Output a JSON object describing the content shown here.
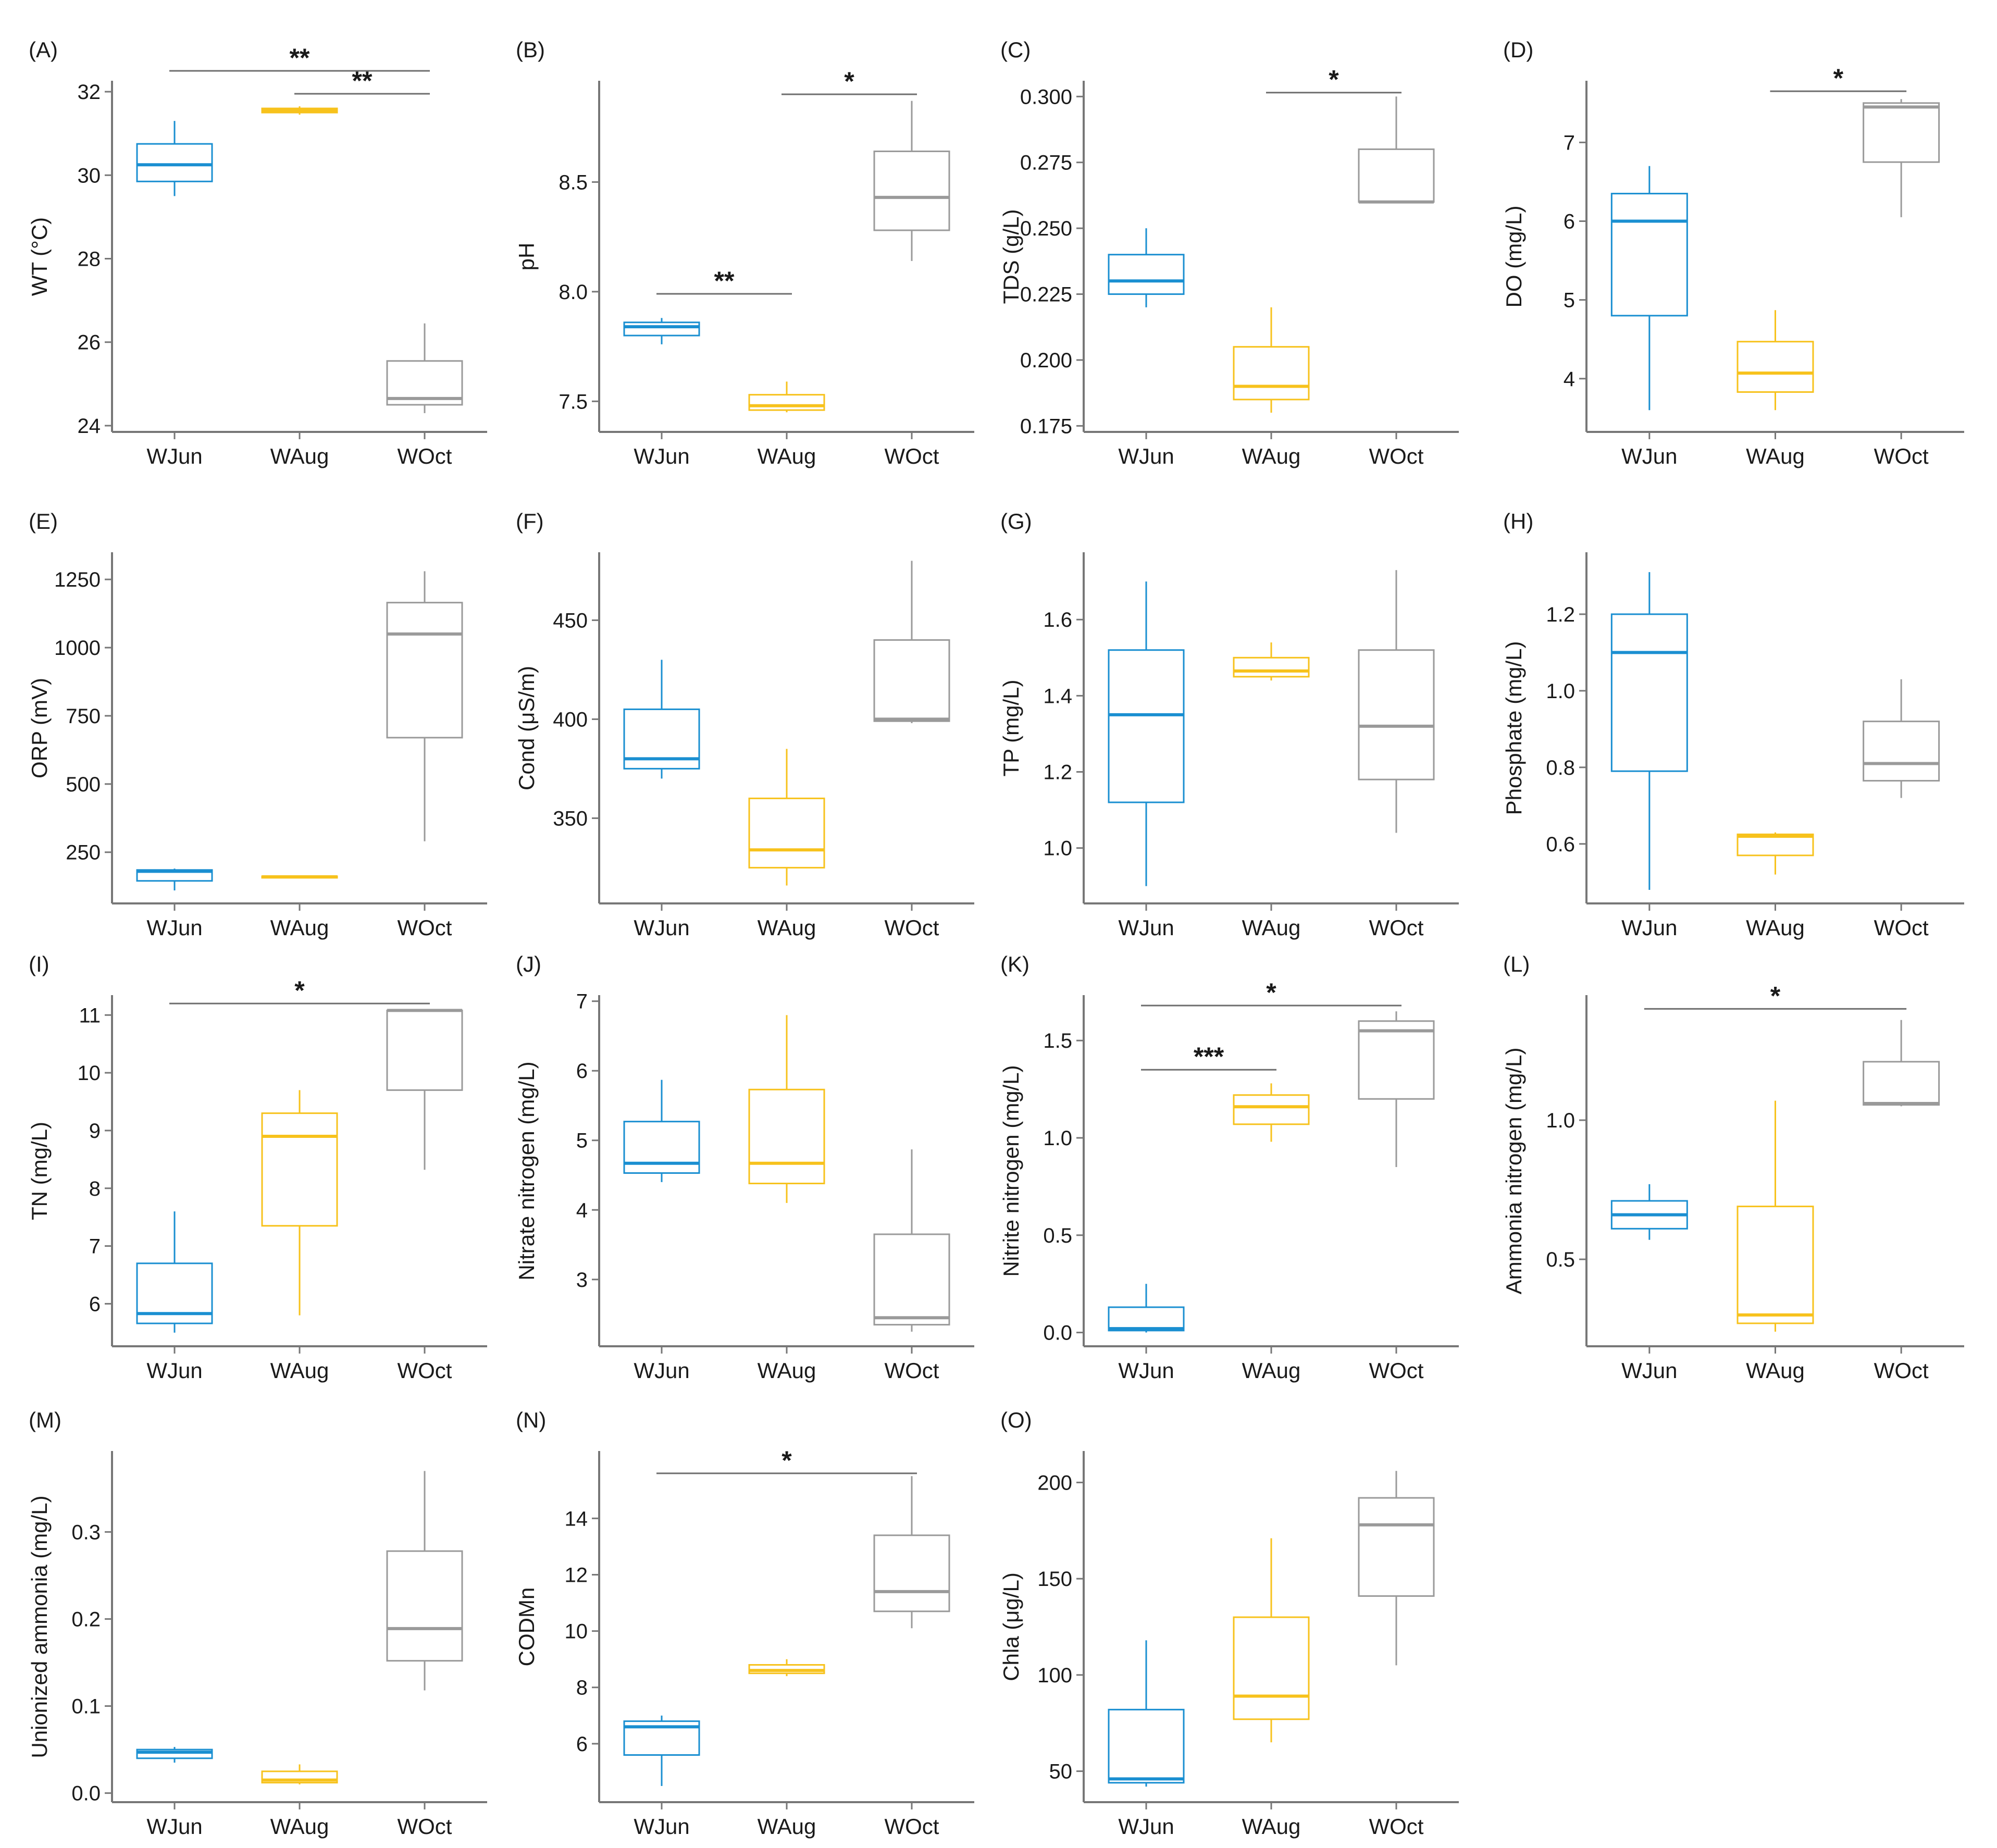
{
  "figure": {
    "groups": [
      "WJun",
      "WAug",
      "WOct"
    ],
    "group_colors": [
      "#1a8fd1",
      "#f7c21c",
      "#9a9a9a"
    ],
    "axis_color": "#777777",
    "bracket_color": "#6e6e6e"
  },
  "chart_data": [
    {
      "type": "box",
      "label": "(A)",
      "ylabel": "WT (°C)",
      "ylim": [
        23.9,
        32.2
      ],
      "ticks": [
        24,
        26,
        28,
        30,
        32
      ],
      "tick_labels": [
        "24",
        "26",
        "28",
        "30",
        "32"
      ],
      "boxes": [
        {
          "group": "WJun",
          "min": 29.5,
          "q1": 29.85,
          "median": 30.25,
          "q3": 30.75,
          "max": 31.3
        },
        {
          "group": "WAug",
          "min": 31.45,
          "q1": 31.5,
          "median": 31.55,
          "q3": 31.6,
          "max": 31.65
        },
        {
          "group": "WOct",
          "min": 24.3,
          "q1": 24.5,
          "median": 24.65,
          "q3": 25.55,
          "max": 26.45
        }
      ],
      "sig": [
        {
          "from": 0,
          "to": 2,
          "y": 32.5,
          "label": "**"
        },
        {
          "from": 1,
          "to": 2,
          "y": 31.95,
          "label": "**"
        }
      ]
    },
    {
      "type": "box",
      "label": "(B)",
      "ylabel": "pH",
      "ylim": [
        7.37,
        8.95
      ],
      "ticks": [
        7.5,
        8.0,
        8.5
      ],
      "tick_labels": [
        "7.5",
        "8.0",
        "8.5"
      ],
      "boxes": [
        {
          "group": "WJun",
          "min": 7.76,
          "q1": 7.8,
          "median": 7.84,
          "q3": 7.86,
          "max": 7.88
        },
        {
          "group": "WAug",
          "min": 7.45,
          "q1": 7.46,
          "median": 7.48,
          "q3": 7.53,
          "max": 7.59
        },
        {
          "group": "WOct",
          "min": 8.14,
          "q1": 8.28,
          "median": 8.43,
          "q3": 8.64,
          "max": 8.87
        }
      ],
      "sig": [
        {
          "from": 0,
          "to": 1,
          "y": 7.99,
          "label": "**"
        },
        {
          "from": 1,
          "to": 2,
          "y": 8.9,
          "label": "*"
        }
      ]
    },
    {
      "type": "box",
      "label": "(C)",
      "ylabel": "TDS (g/L)",
      "ylim": [
        0.1735,
        0.305
      ],
      "ticks": [
        0.175,
        0.2,
        0.225,
        0.25,
        0.275,
        0.3
      ],
      "tick_labels": [
        "0.175",
        "0.200",
        "0.225",
        "0.250",
        "0.275",
        "0.300"
      ],
      "boxes": [
        {
          "group": "WJun",
          "min": 0.22,
          "q1": 0.225,
          "median": 0.23,
          "q3": 0.24,
          "max": 0.25
        },
        {
          "group": "WAug",
          "min": 0.18,
          "q1": 0.185,
          "median": 0.19,
          "q3": 0.205,
          "max": 0.22
        },
        {
          "group": "WOct",
          "min": 0.26,
          "q1": 0.26,
          "median": 0.26,
          "q3": 0.28,
          "max": 0.3
        }
      ],
      "sig": [
        {
          "from": 1,
          "to": 2,
          "y": 0.3015,
          "label": "*"
        }
      ]
    },
    {
      "type": "box",
      "label": "(D)",
      "ylabel": "DO (mg/L)",
      "ylim": [
        3.35,
        7.75
      ],
      "ticks": [
        4,
        5,
        6,
        7
      ],
      "tick_labels": [
        "4",
        "5",
        "6",
        "7"
      ],
      "boxes": [
        {
          "group": "WJun",
          "min": 3.6,
          "q1": 4.8,
          "median": 6.0,
          "q3": 6.35,
          "max": 6.7
        },
        {
          "group": "WAug",
          "min": 3.6,
          "q1": 3.83,
          "median": 4.07,
          "q3": 4.47,
          "max": 4.87
        },
        {
          "group": "WOct",
          "min": 6.05,
          "q1": 6.75,
          "median": 7.45,
          "q3": 7.5,
          "max": 7.55
        }
      ],
      "sig": [
        {
          "from": 1,
          "to": 2,
          "y": 7.65,
          "label": "*"
        }
      ]
    },
    {
      "type": "box",
      "label": "(E)",
      "ylabel": "ORP (mV)",
      "ylim": [
        70,
        1340
      ],
      "ticks": [
        250,
        500,
        750,
        1000,
        1250
      ],
      "tick_labels": [
        "250",
        "500",
        "750",
        "1000",
        "1250"
      ],
      "boxes": [
        {
          "group": "WJun",
          "min": 110,
          "q1": 145,
          "median": 180,
          "q3": 185,
          "max": 190
        },
        {
          "group": "WAug",
          "min": 155,
          "q1": 160,
          "median": 160,
          "q3": 162,
          "max": 165
        },
        {
          "group": "WOct",
          "min": 290,
          "q1": 670,
          "median": 1050,
          "q3": 1165,
          "max": 1280
        }
      ],
      "sig": []
    },
    {
      "type": "box",
      "label": "(F)",
      "ylabel": "Cond (μS/m)",
      "ylim": [
        308,
        483
      ],
      "ticks": [
        350,
        400,
        450
      ],
      "tick_labels": [
        "350",
        "400",
        "450"
      ],
      "boxes": [
        {
          "group": "WJun",
          "min": 370,
          "q1": 375,
          "median": 380,
          "q3": 405,
          "max": 430
        },
        {
          "group": "WAug",
          "min": 316,
          "q1": 325,
          "median": 334,
          "q3": 360,
          "max": 385
        },
        {
          "group": "WOct",
          "min": 398,
          "q1": 399,
          "median": 400,
          "q3": 440,
          "max": 480
        }
      ],
      "sig": []
    },
    {
      "type": "box",
      "label": "(G)",
      "ylabel": "TP (mg/L)",
      "ylim": [
        0.86,
        1.77
      ],
      "ticks": [
        1.0,
        1.2,
        1.4,
        1.6
      ],
      "tick_labels": [
        "1.0",
        "1.2",
        "1.4",
        "1.6"
      ],
      "boxes": [
        {
          "group": "WJun",
          "min": 0.9,
          "q1": 1.12,
          "median": 1.35,
          "q3": 1.52,
          "max": 1.7
        },
        {
          "group": "WAug",
          "min": 1.44,
          "q1": 1.45,
          "median": 1.465,
          "q3": 1.5,
          "max": 1.54
        },
        {
          "group": "WOct",
          "min": 1.04,
          "q1": 1.18,
          "median": 1.32,
          "q3": 1.52,
          "max": 1.73
        }
      ],
      "sig": []
    },
    {
      "type": "box",
      "label": "(H)",
      "ylabel": "Phosphate (mg/L)",
      "ylim": [
        0.45,
        1.355
      ],
      "ticks": [
        0.6,
        0.8,
        1.0,
        1.2
      ],
      "tick_labels": [
        "0.6",
        "0.8",
        "1.0",
        "1.2"
      ],
      "boxes": [
        {
          "group": "WJun",
          "min": 0.48,
          "q1": 0.79,
          "median": 1.1,
          "q3": 1.2,
          "max": 1.31
        },
        {
          "group": "WAug",
          "min": 0.52,
          "q1": 0.57,
          "median": 0.62,
          "q3": 0.625,
          "max": 0.63
        },
        {
          "group": "WOct",
          "min": 0.72,
          "q1": 0.765,
          "median": 0.81,
          "q3": 0.92,
          "max": 1.03
        }
      ],
      "sig": []
    },
    {
      "type": "box",
      "label": "(I)",
      "ylabel": "TN (mg/L)",
      "ylim": [
        5.3,
        11.3
      ],
      "ticks": [
        6,
        7,
        8,
        9,
        10,
        11
      ],
      "tick_labels": [
        "6",
        "7",
        "8",
        "9",
        "10",
        "11"
      ],
      "boxes": [
        {
          "group": "WJun",
          "min": 5.5,
          "q1": 5.66,
          "median": 5.83,
          "q3": 6.7,
          "max": 7.6
        },
        {
          "group": "WAug",
          "min": 5.8,
          "q1": 7.35,
          "median": 8.9,
          "q3": 9.3,
          "max": 9.7
        },
        {
          "group": "WOct",
          "min": 8.32,
          "q1": 9.7,
          "median": 11.08,
          "q3": 11.08,
          "max": 11.08
        }
      ],
      "sig": [
        {
          "from": 0,
          "to": 2,
          "y": 11.2,
          "label": "*"
        }
      ]
    },
    {
      "type": "box",
      "label": "(J)",
      "ylabel": "Nitrate nitrogen (mg/L)",
      "ylim": [
        2.07,
        7.05
      ],
      "ticks": [
        3,
        4,
        5,
        6,
        7
      ],
      "tick_labels": [
        "3",
        "4",
        "5",
        "6",
        "7"
      ],
      "boxes": [
        {
          "group": "WJun",
          "min": 4.4,
          "q1": 4.53,
          "median": 4.67,
          "q3": 5.27,
          "max": 5.87
        },
        {
          "group": "WAug",
          "min": 4.1,
          "q1": 4.38,
          "median": 4.67,
          "q3": 5.73,
          "max": 6.8
        },
        {
          "group": "WOct",
          "min": 2.25,
          "q1": 2.35,
          "median": 2.45,
          "q3": 3.65,
          "max": 4.87
        }
      ],
      "sig": []
    },
    {
      "type": "box",
      "label": "(K)",
      "ylabel": "Nitrite nitrogen (mg/L)",
      "ylim": [
        -0.06,
        1.72
      ],
      "ticks": [
        0.0,
        0.5,
        1.0,
        1.5
      ],
      "tick_labels": [
        "0.0",
        "0.5",
        "1.0",
        "1.5"
      ],
      "boxes": [
        {
          "group": "WJun",
          "min": 0.0,
          "q1": 0.01,
          "median": 0.02,
          "q3": 0.13,
          "max": 0.25
        },
        {
          "group": "WAug",
          "min": 0.98,
          "q1": 1.07,
          "median": 1.16,
          "q3": 1.22,
          "max": 1.28
        },
        {
          "group": "WOct",
          "min": 0.85,
          "q1": 1.2,
          "median": 1.55,
          "q3": 1.6,
          "max": 1.65
        }
      ],
      "sig": [
        {
          "from": 0,
          "to": 1,
          "y": 1.35,
          "label": "***"
        },
        {
          "from": 0,
          "to": 2,
          "y": 1.68,
          "label": "*"
        }
      ]
    },
    {
      "type": "box",
      "label": "(L)",
      "ylabel": "Ammonia nitrogen (mg/L)",
      "ylim": [
        0.195,
        1.44
      ],
      "ticks": [
        0.5,
        1.0
      ],
      "tick_labels": [
        "0.5",
        "1.0"
      ],
      "boxes": [
        {
          "group": "WJun",
          "min": 0.57,
          "q1": 0.61,
          "median": 0.66,
          "q3": 0.71,
          "max": 0.77
        },
        {
          "group": "WAug",
          "min": 0.24,
          "q1": 0.27,
          "median": 0.3,
          "q3": 0.69,
          "max": 1.07
        },
        {
          "group": "WOct",
          "min": 1.05,
          "q1": 1.055,
          "median": 1.06,
          "q3": 1.21,
          "max": 1.36
        }
      ],
      "sig": [
        {
          "from": 0,
          "to": 2,
          "y": 1.4,
          "label": "*"
        }
      ]
    },
    {
      "type": "box",
      "label": "(M)",
      "ylabel": "Unionized ammonia (mg/L)",
      "ylim": [
        -0.008,
        0.39
      ],
      "ticks": [
        0.0,
        0.1,
        0.2,
        0.3
      ],
      "tick_labels": [
        "0.0",
        "0.1",
        "0.2",
        "0.3"
      ],
      "boxes": [
        {
          "group": "WJun",
          "min": 0.035,
          "q1": 0.04,
          "median": 0.047,
          "q3": 0.05,
          "max": 0.053
        },
        {
          "group": "WAug",
          "min": 0.01,
          "q1": 0.012,
          "median": 0.015,
          "q3": 0.025,
          "max": 0.033
        },
        {
          "group": "WOct",
          "min": 0.118,
          "q1": 0.152,
          "median": 0.189,
          "q3": 0.278,
          "max": 0.37
        }
      ],
      "sig": []
    },
    {
      "type": "box",
      "label": "(N)",
      "ylabel": "CODMn",
      "ylim": [
        4.0,
        16.3
      ],
      "ticks": [
        6,
        8,
        10,
        12,
        14
      ],
      "tick_labels": [
        "6",
        "8",
        "10",
        "12",
        "14"
      ],
      "boxes": [
        {
          "group": "WJun",
          "min": 4.5,
          "q1": 5.6,
          "median": 6.6,
          "q3": 6.8,
          "max": 7.0
        },
        {
          "group": "WAug",
          "min": 8.4,
          "q1": 8.5,
          "median": 8.6,
          "q3": 8.8,
          "max": 9.0
        },
        {
          "group": "WOct",
          "min": 10.1,
          "q1": 10.7,
          "median": 11.4,
          "q3": 13.4,
          "max": 15.5
        }
      ],
      "sig": [
        {
          "from": 0,
          "to": 2,
          "y": 15.6,
          "label": "*"
        }
      ]
    },
    {
      "type": "box",
      "label": "(O)",
      "ylabel": "Chla (μg/L)",
      "ylim": [
        35,
        215
      ],
      "ticks": [
        50,
        100,
        150,
        200
      ],
      "tick_labels": [
        "50",
        "100",
        "150",
        "200"
      ],
      "boxes": [
        {
          "group": "WJun",
          "min": 42,
          "q1": 44,
          "median": 46,
          "q3": 82,
          "max": 118
        },
        {
          "group": "WAug",
          "min": 65,
          "q1": 77,
          "median": 89,
          "q3": 130,
          "max": 171
        },
        {
          "group": "WOct",
          "min": 105,
          "q1": 141,
          "median": 178,
          "q3": 192,
          "max": 206
        }
      ],
      "sig": []
    }
  ]
}
